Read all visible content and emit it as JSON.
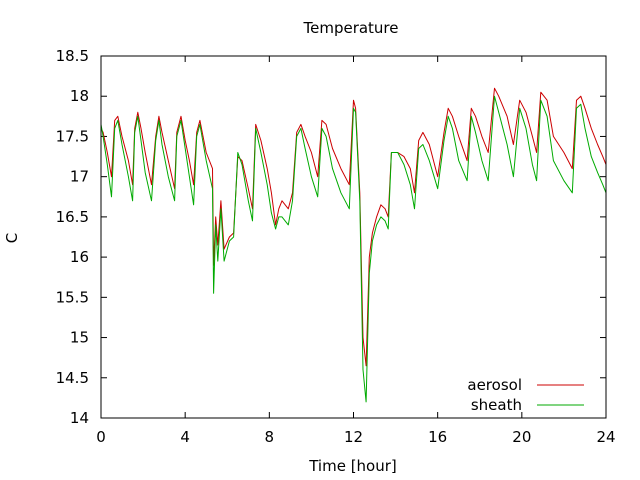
{
  "chart_data": {
    "type": "line",
    "title": "Temperature",
    "xlabel": "Time [hour]",
    "ylabel": "C",
    "xlim": [
      0,
      24
    ],
    "ylim": [
      14,
      18.5
    ],
    "xticks": [
      0,
      4,
      8,
      12,
      16,
      20,
      24
    ],
    "xtick_labels": [
      "0",
      "4",
      "8",
      "12",
      "16",
      "20",
      "24"
    ],
    "yticks": [
      14,
      14.5,
      15,
      15.5,
      16,
      16.5,
      17,
      17.5,
      18,
      18.5
    ],
    "ytick_labels": [
      "14",
      "14.5",
      "15",
      "15.5",
      "16",
      "16.5",
      "17",
      "17.5",
      "18",
      "18.5"
    ],
    "grid": false,
    "legend_position": "bottom-right",
    "series": [
      {
        "name": "aerosol",
        "color": "#cc0000",
        "x": [
          0.0,
          0.1,
          0.3,
          0.5,
          0.65,
          0.8,
          1.0,
          1.3,
          1.5,
          1.6,
          1.75,
          1.9,
          2.1,
          2.4,
          2.6,
          2.75,
          2.9,
          3.2,
          3.5,
          3.6,
          3.8,
          4.0,
          4.2,
          4.4,
          4.55,
          4.7,
          5.0,
          5.3,
          5.35,
          5.45,
          5.55,
          5.7,
          5.85,
          6.1,
          6.3,
          6.5,
          6.7,
          7.0,
          7.2,
          7.35,
          7.6,
          7.9,
          8.1,
          8.3,
          8.45,
          8.6,
          8.9,
          9.1,
          9.3,
          9.5,
          9.7,
          10.0,
          10.3,
          10.5,
          10.7,
          11.0,
          11.4,
          11.8,
          12.0,
          12.1,
          12.3,
          12.45,
          12.6,
          12.75,
          12.9,
          13.1,
          13.3,
          13.5,
          13.65,
          13.8,
          14.1,
          14.4,
          14.7,
          14.9,
          15.1,
          15.3,
          15.6,
          16.0,
          16.3,
          16.5,
          16.7,
          17.0,
          17.4,
          17.6,
          17.8,
          18.1,
          18.4,
          18.7,
          18.9,
          19.3,
          19.6,
          19.9,
          20.2,
          20.5,
          20.7,
          20.9,
          21.2,
          21.5,
          22.0,
          22.4,
          22.6,
          22.8,
          23.0,
          23.3,
          23.6,
          23.85,
          24.0
        ],
        "y": [
          17.6,
          17.55,
          17.3,
          17.0,
          17.7,
          17.75,
          17.5,
          17.2,
          16.9,
          17.6,
          17.8,
          17.6,
          17.3,
          16.9,
          17.5,
          17.75,
          17.55,
          17.2,
          16.85,
          17.55,
          17.75,
          17.45,
          17.2,
          16.9,
          17.55,
          17.7,
          17.3,
          17.1,
          15.9,
          16.5,
          16.15,
          16.7,
          16.1,
          16.25,
          16.3,
          17.25,
          17.2,
          16.85,
          16.6,
          17.65,
          17.45,
          17.1,
          16.8,
          16.4,
          16.6,
          16.7,
          16.6,
          16.8,
          17.55,
          17.65,
          17.5,
          17.3,
          17.0,
          17.7,
          17.65,
          17.35,
          17.1,
          16.9,
          17.95,
          17.85,
          16.8,
          15.0,
          14.65,
          16.0,
          16.3,
          16.5,
          16.65,
          16.6,
          16.5,
          17.3,
          17.3,
          17.25,
          17.1,
          16.8,
          17.45,
          17.55,
          17.4,
          17.0,
          17.55,
          17.85,
          17.75,
          17.5,
          17.2,
          17.85,
          17.75,
          17.5,
          17.3,
          18.1,
          18.0,
          17.75,
          17.4,
          17.95,
          17.8,
          17.5,
          17.3,
          18.05,
          17.95,
          17.5,
          17.3,
          17.1,
          17.95,
          18.0,
          17.85,
          17.6,
          17.4,
          17.25,
          17.15
        ]
      },
      {
        "name": "sheath",
        "color": "#00aa00",
        "x": [
          0.0,
          0.1,
          0.3,
          0.5,
          0.65,
          0.8,
          1.0,
          1.3,
          1.5,
          1.6,
          1.75,
          1.9,
          2.1,
          2.4,
          2.6,
          2.75,
          2.9,
          3.2,
          3.5,
          3.6,
          3.8,
          4.0,
          4.2,
          4.4,
          4.55,
          4.7,
          5.0,
          5.3,
          5.35,
          5.45,
          5.55,
          5.7,
          5.85,
          6.1,
          6.3,
          6.5,
          6.7,
          7.0,
          7.2,
          7.35,
          7.6,
          7.9,
          8.1,
          8.3,
          8.45,
          8.6,
          8.9,
          9.1,
          9.3,
          9.5,
          9.7,
          10.0,
          10.3,
          10.5,
          10.7,
          11.0,
          11.4,
          11.8,
          12.0,
          12.1,
          12.3,
          12.45,
          12.6,
          12.75,
          12.9,
          13.1,
          13.3,
          13.5,
          13.65,
          13.8,
          14.1,
          14.4,
          14.7,
          14.9,
          15.1,
          15.3,
          15.6,
          16.0,
          16.3,
          16.5,
          16.7,
          17.0,
          17.4,
          17.6,
          17.8,
          18.1,
          18.4,
          18.7,
          18.9,
          19.3,
          19.6,
          19.9,
          20.2,
          20.5,
          20.7,
          20.9,
          21.2,
          21.5,
          22.0,
          22.4,
          22.6,
          22.8,
          23.0,
          23.3,
          23.6,
          23.85,
          24.0
        ],
        "y": [
          17.65,
          17.5,
          17.15,
          16.75,
          17.6,
          17.7,
          17.4,
          17.0,
          16.7,
          17.55,
          17.75,
          17.45,
          17.05,
          16.7,
          17.45,
          17.7,
          17.4,
          17.0,
          16.7,
          17.5,
          17.7,
          17.35,
          17.0,
          16.65,
          17.5,
          17.65,
          17.2,
          16.85,
          15.55,
          16.4,
          15.95,
          16.6,
          15.95,
          16.2,
          16.25,
          17.3,
          17.15,
          16.7,
          16.45,
          17.6,
          17.3,
          16.9,
          16.55,
          16.35,
          16.5,
          16.5,
          16.4,
          16.7,
          17.5,
          17.6,
          17.35,
          17.0,
          16.75,
          17.6,
          17.5,
          17.1,
          16.8,
          16.6,
          17.85,
          17.8,
          16.7,
          14.6,
          14.2,
          15.8,
          16.2,
          16.4,
          16.5,
          16.45,
          16.35,
          17.3,
          17.3,
          17.15,
          16.9,
          16.6,
          17.35,
          17.4,
          17.2,
          16.85,
          17.45,
          17.75,
          17.6,
          17.2,
          16.95,
          17.75,
          17.55,
          17.2,
          16.95,
          18.0,
          17.8,
          17.4,
          17.0,
          17.85,
          17.6,
          17.15,
          16.95,
          17.95,
          17.75,
          17.2,
          16.95,
          16.8,
          17.85,
          17.9,
          17.6,
          17.25,
          17.05,
          16.9,
          16.8
        ]
      }
    ]
  }
}
